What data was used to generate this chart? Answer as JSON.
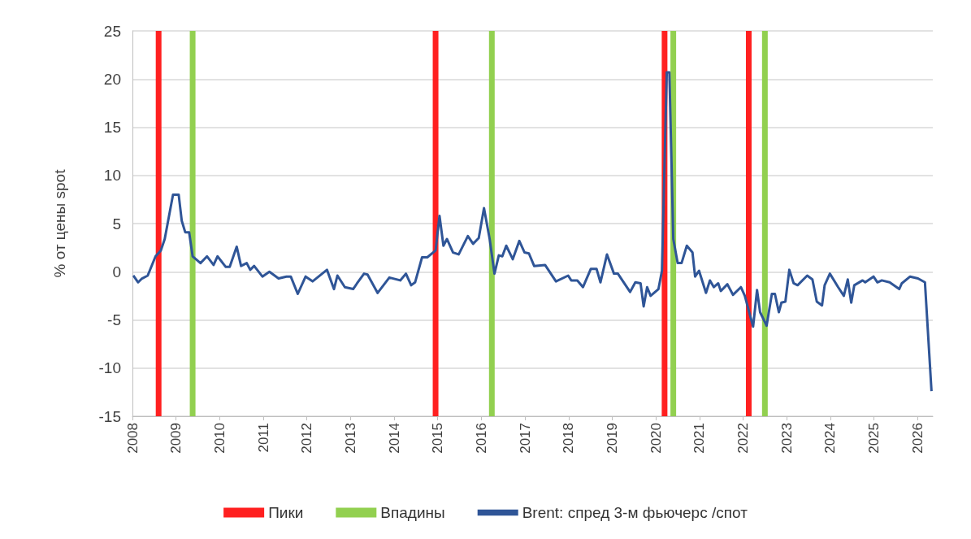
{
  "chart_data": {
    "type": "line",
    "ylabel": "% от цены spot",
    "xlim": [
      2008,
      2026.35
    ],
    "xticks": [
      2008,
      2009,
      2010,
      2011,
      2012,
      2013,
      2014,
      2015,
      2016,
      2017,
      2018,
      2019,
      2020,
      2021,
      2022,
      2023,
      2024,
      2025,
      2026
    ],
    "ylim": [
      -15,
      25
    ],
    "yticks": [
      -15,
      -10,
      -5,
      0,
      5,
      10,
      15,
      20,
      25
    ],
    "grid": "y",
    "legend": "bottom",
    "series": [
      {
        "name": "Пики",
        "type": "bar",
        "color": "#ff2020",
        "x": [
          2008.6,
          2014.95,
          2020.2,
          2022.13
        ],
        "base": [
          -15,
          -15,
          -15,
          -15
        ],
        "values": [
          40,
          40,
          40,
          40
        ]
      },
      {
        "name": "Впадины",
        "type": "bar",
        "color": "#92d050",
        "x": [
          2009.38,
          2016.24,
          2020.4,
          2022.5
        ],
        "base": [
          -15,
          -15,
          -15,
          -15
        ],
        "values": [
          40,
          40,
          40,
          40
        ]
      },
      {
        "name": "Brent: спред 3-м фьючерс /спот",
        "color": "#2f5597",
        "x": [
          2008.02,
          2008.13,
          2008.22,
          2008.35,
          2008.53,
          2008.65,
          2008.74,
          2008.93,
          2009.06,
          2009.13,
          2009.21,
          2009.3,
          2009.38,
          2009.56,
          2009.71,
          2009.86,
          2009.95,
          2010.14,
          2010.23,
          2010.39,
          2010.49,
          2010.62,
          2010.7,
          2010.79,
          2010.98,
          2011.14,
          2011.35,
          2011.53,
          2011.63,
          2011.79,
          2011.97,
          2012.13,
          2012.35,
          2012.46,
          2012.62,
          2012.7,
          2012.87,
          2013.06,
          2013.15,
          2013.31,
          2013.39,
          2013.62,
          2013.89,
          2014.14,
          2014.27,
          2014.39,
          2014.48,
          2014.64,
          2014.76,
          2014.95,
          2015.04,
          2015.13,
          2015.21,
          2015.35,
          2015.48,
          2015.69,
          2015.81,
          2015.94,
          2016.06,
          2016.19,
          2016.3,
          2016.4,
          2016.48,
          2016.57,
          2016.72,
          2016.87,
          2016.99,
          2017.09,
          2017.21,
          2017.46,
          2017.71,
          2017.99,
          2018.06,
          2018.2,
          2018.33,
          2018.51,
          2018.64,
          2018.73,
          2018.88,
          2019.04,
          2019.13,
          2019.41,
          2019.53,
          2019.65,
          2019.72,
          2019.8,
          2019.88,
          2020.06,
          2020.14,
          2020.25,
          2020.31,
          2020.4,
          2020.5,
          2020.59,
          2020.71,
          2020.84,
          2020.9,
          2020.99,
          2021.15,
          2021.24,
          2021.33,
          2021.43,
          2021.49,
          2021.64,
          2021.77,
          2021.95,
          2022.04,
          2022.23,
          2022.32,
          2022.39,
          2022.54,
          2022.66,
          2022.73,
          2022.82,
          2022.88,
          2022.97,
          2023.06,
          2023.16,
          2023.25,
          2023.47,
          2023.59,
          2023.69,
          2023.81,
          2023.87,
          2023.99,
          2024.18,
          2024.31,
          2024.4,
          2024.48,
          2024.55,
          2024.74,
          2024.8,
          2024.99,
          2025.08,
          2025.18,
          2025.36,
          2025.58,
          2025.64,
          2025.83,
          2026.01,
          2026.17,
          2026.32
        ],
        "values": [
          -0.4,
          -1.1,
          -0.7,
          -0.4,
          1.6,
          2.2,
          3.4,
          8.0,
          8.0,
          5.3,
          4.1,
          4.1,
          1.6,
          0.9,
          1.6,
          0.7,
          1.6,
          0.5,
          0.5,
          2.6,
          0.6,
          0.9,
          0.2,
          0.6,
          -0.5,
          0,
          -0.7,
          -0.5,
          -0.5,
          -2.3,
          -0.5,
          -1.0,
          -0.2,
          0.2,
          -1.8,
          -0.4,
          -1.6,
          -1.8,
          -1.2,
          -0.2,
          -0.3,
          -2.2,
          -0.6,
          -0.9,
          -0.2,
          -1.4,
          -1.1,
          1.5,
          1.5,
          2.2,
          5.8,
          2.7,
          3.4,
          2.0,
          1.8,
          3.7,
          2.9,
          3.5,
          6.6,
          3.4,
          -0.2,
          1.7,
          1.6,
          2.7,
          1.3,
          3.2,
          2.0,
          1.9,
          0.6,
          0.7,
          -1.0,
          -0.4,
          -0.9,
          -0.9,
          -1.6,
          0.3,
          0.3,
          -1.1,
          1.8,
          -0.2,
          -0.2,
          -2.1,
          -1.1,
          -1.2,
          -3.6,
          -1.6,
          -2.5,
          -1.8,
          0.1,
          20.7,
          20.7,
          3.4,
          0.9,
          0.9,
          2.7,
          2.0,
          -0.5,
          0.1,
          -2.2,
          -0.9,
          -1.6,
          -1.2,
          -2.0,
          -1.3,
          -2.4,
          -1.6,
          -2.5,
          -5.7,
          -1.9,
          -4.2,
          -5.6,
          -2.3,
          -2.3,
          -4.2,
          -3.2,
          -3.1,
          0.2,
          -1.2,
          -1.4,
          -0.4,
          -0.8,
          -3.1,
          -3.5,
          -1.4,
          -0.2,
          -1.6,
          -2.5,
          -0.8,
          -3.2,
          -1.4,
          -0.9,
          -1.1,
          -0.5,
          -1.1,
          -0.9,
          -1.1,
          -1.8,
          -1.2,
          -0.5,
          -0.7,
          -1.1,
          -12.4
        ]
      }
    ]
  }
}
